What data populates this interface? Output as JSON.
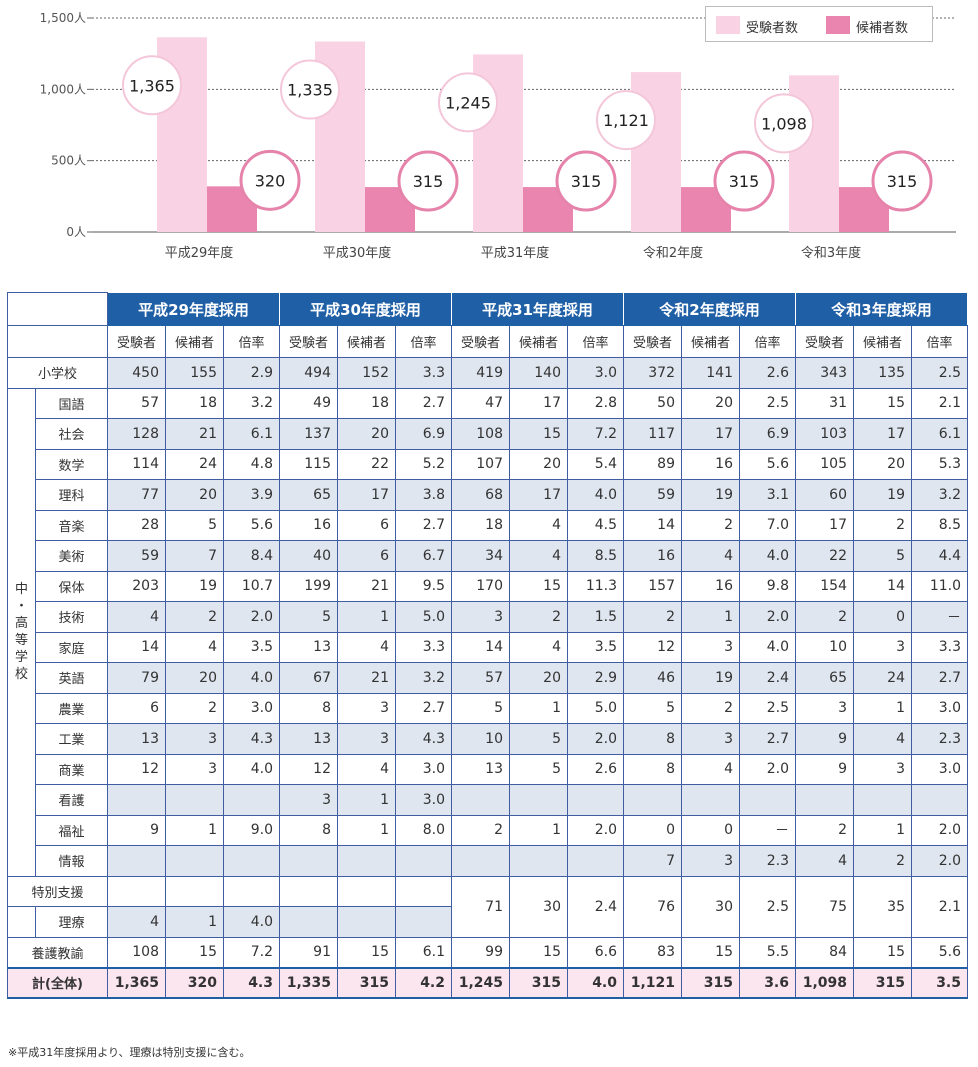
{
  "colors": {
    "applicants": "#f9d3e3",
    "candidates": "#ea85b0",
    "circle_border": "#e683ab",
    "header_blue": "#1f5fa6",
    "row_shade": "#dfe6f0",
    "total_row": "#fbe5ee"
  },
  "legend": {
    "applicants": "受験者数",
    "candidates": "候補者数"
  },
  "chart_data": {
    "type": "bar",
    "categories": [
      "平成29年度",
      "平成30年度",
      "平成31年度",
      "令和2年度",
      "令和3年度"
    ],
    "series": [
      {
        "name": "受験者数",
        "values": [
          1365,
          1335,
          1245,
          1121,
          1098
        ],
        "labels": [
          "1,365",
          "1,335",
          "1,245",
          "1,121",
          "1,098"
        ]
      },
      {
        "name": "候補者数",
        "values": [
          320,
          315,
          315,
          315,
          315
        ],
        "labels": [
          "320",
          "315",
          "315",
          "315",
          "315"
        ]
      }
    ],
    "yticks": [
      {
        "value": 0,
        "label": "0人"
      },
      {
        "value": 500,
        "label": "500人"
      },
      {
        "value": 1000,
        "label": "1,000人"
      },
      {
        "value": 1500,
        "label": "1,500人"
      }
    ],
    "ylim": [
      0,
      1500
    ],
    "grid": true,
    "legend_position": "top-right"
  },
  "table": {
    "years": [
      "平成29年度採用",
      "平成30年度採用",
      "平成31年度採用",
      "令和2年度採用",
      "令和3年度採用"
    ],
    "subheaders": [
      "受験者",
      "候補者",
      "倍率"
    ],
    "elementary": {
      "label": "小学校",
      "values": [
        [
          "450",
          "155",
          "2.9"
        ],
        [
          "494",
          "152",
          "3.3"
        ],
        [
          "419",
          "140",
          "3.0"
        ],
        [
          "372",
          "141",
          "2.6"
        ],
        [
          "343",
          "135",
          "2.5"
        ]
      ]
    },
    "secondary_label": "中・高等学校",
    "subjects": [
      {
        "label": "国語",
        "values": [
          [
            "57",
            "18",
            "3.2"
          ],
          [
            "49",
            "18",
            "2.7"
          ],
          [
            "47",
            "17",
            "2.8"
          ],
          [
            "50",
            "20",
            "2.5"
          ],
          [
            "31",
            "15",
            "2.1"
          ]
        ]
      },
      {
        "label": "社会",
        "values": [
          [
            "128",
            "21",
            "6.1"
          ],
          [
            "137",
            "20",
            "6.9"
          ],
          [
            "108",
            "15",
            "7.2"
          ],
          [
            "117",
            "17",
            "6.9"
          ],
          [
            "103",
            "17",
            "6.1"
          ]
        ]
      },
      {
        "label": "数学",
        "values": [
          [
            "114",
            "24",
            "4.8"
          ],
          [
            "115",
            "22",
            "5.2"
          ],
          [
            "107",
            "20",
            "5.4"
          ],
          [
            "89",
            "16",
            "5.6"
          ],
          [
            "105",
            "20",
            "5.3"
          ]
        ]
      },
      {
        "label": "理科",
        "values": [
          [
            "77",
            "20",
            "3.9"
          ],
          [
            "65",
            "17",
            "3.8"
          ],
          [
            "68",
            "17",
            "4.0"
          ],
          [
            "59",
            "19",
            "3.1"
          ],
          [
            "60",
            "19",
            "3.2"
          ]
        ]
      },
      {
        "label": "音楽",
        "values": [
          [
            "28",
            "5",
            "5.6"
          ],
          [
            "16",
            "6",
            "2.7"
          ],
          [
            "18",
            "4",
            "4.5"
          ],
          [
            "14",
            "2",
            "7.0"
          ],
          [
            "17",
            "2",
            "8.5"
          ]
        ]
      },
      {
        "label": "美術",
        "values": [
          [
            "59",
            "7",
            "8.4"
          ],
          [
            "40",
            "6",
            "6.7"
          ],
          [
            "34",
            "4",
            "8.5"
          ],
          [
            "16",
            "4",
            "4.0"
          ],
          [
            "22",
            "5",
            "4.4"
          ]
        ]
      },
      {
        "label": "保体",
        "values": [
          [
            "203",
            "19",
            "10.7"
          ],
          [
            "199",
            "21",
            "9.5"
          ],
          [
            "170",
            "15",
            "11.3"
          ],
          [
            "157",
            "16",
            "9.8"
          ],
          [
            "154",
            "14",
            "11.0"
          ]
        ]
      },
      {
        "label": "技術",
        "values": [
          [
            "4",
            "2",
            "2.0"
          ],
          [
            "5",
            "1",
            "5.0"
          ],
          [
            "3",
            "2",
            "1.5"
          ],
          [
            "2",
            "1",
            "2.0"
          ],
          [
            "2",
            "0",
            "－"
          ]
        ]
      },
      {
        "label": "家庭",
        "values": [
          [
            "14",
            "4",
            "3.5"
          ],
          [
            "13",
            "4",
            "3.3"
          ],
          [
            "14",
            "4",
            "3.5"
          ],
          [
            "12",
            "3",
            "4.0"
          ],
          [
            "10",
            "3",
            "3.3"
          ]
        ]
      },
      {
        "label": "英語",
        "values": [
          [
            "79",
            "20",
            "4.0"
          ],
          [
            "67",
            "21",
            "3.2"
          ],
          [
            "57",
            "20",
            "2.9"
          ],
          [
            "46",
            "19",
            "2.4"
          ],
          [
            "65",
            "24",
            "2.7"
          ]
        ]
      },
      {
        "label": "農業",
        "values": [
          [
            "6",
            "2",
            "3.0"
          ],
          [
            "8",
            "3",
            "2.7"
          ],
          [
            "5",
            "1",
            "5.0"
          ],
          [
            "5",
            "2",
            "2.5"
          ],
          [
            "3",
            "1",
            "3.0"
          ]
        ]
      },
      {
        "label": "工業",
        "values": [
          [
            "13",
            "3",
            "4.3"
          ],
          [
            "13",
            "3",
            "4.3"
          ],
          [
            "10",
            "5",
            "2.0"
          ],
          [
            "8",
            "3",
            "2.7"
          ],
          [
            "9",
            "4",
            "2.3"
          ]
        ]
      },
      {
        "label": "商業",
        "values": [
          [
            "12",
            "3",
            "4.0"
          ],
          [
            "12",
            "4",
            "3.0"
          ],
          [
            "13",
            "5",
            "2.6"
          ],
          [
            "8",
            "4",
            "2.0"
          ],
          [
            "9",
            "3",
            "3.0"
          ]
        ]
      },
      {
        "label": "看護",
        "values": [
          [
            "",
            "",
            ""
          ],
          [
            "3",
            "1",
            "3.0"
          ],
          [
            "",
            "",
            ""
          ],
          [
            "",
            "",
            ""
          ],
          [
            "",
            "",
            ""
          ]
        ]
      },
      {
        "label": "福祉",
        "values": [
          [
            "9",
            "1",
            "9.0"
          ],
          [
            "8",
            "1",
            "8.0"
          ],
          [
            "2",
            "1",
            "2.0"
          ],
          [
            "0",
            "0",
            "－"
          ],
          [
            "2",
            "1",
            "2.0"
          ]
        ]
      },
      {
        "label": "情報",
        "values": [
          [
            "",
            "",
            ""
          ],
          [
            "",
            "",
            ""
          ],
          [
            "",
            "",
            ""
          ],
          [
            "7",
            "3",
            "2.3"
          ],
          [
            "4",
            "2",
            "2.0"
          ]
        ]
      }
    ],
    "special": {
      "label": "特別支援",
      "sub_label": "理療",
      "h29_riryo": [
        "4",
        "1",
        "4.0"
      ],
      "merged": [
        [
          "71",
          "30",
          "2.4"
        ],
        [
          "76",
          "30",
          "2.5"
        ],
        [
          "75",
          "35",
          "2.1"
        ]
      ]
    },
    "nurse": {
      "label": "養護教諭",
      "values": [
        [
          "108",
          "15",
          "7.2"
        ],
        [
          "91",
          "15",
          "6.1"
        ],
        [
          "99",
          "15",
          "6.6"
        ],
        [
          "83",
          "15",
          "5.5"
        ],
        [
          "84",
          "15",
          "5.6"
        ]
      ]
    },
    "total": {
      "label": "計(全体)",
      "values": [
        [
          "1,365",
          "320",
          "4.3"
        ],
        [
          "1,335",
          "315",
          "4.2"
        ],
        [
          "1,245",
          "315",
          "4.0"
        ],
        [
          "1,121",
          "315",
          "3.6"
        ],
        [
          "1,098",
          "315",
          "3.5"
        ]
      ]
    }
  },
  "note": "※平成31年度採用より、理療は特別支援に含む。"
}
